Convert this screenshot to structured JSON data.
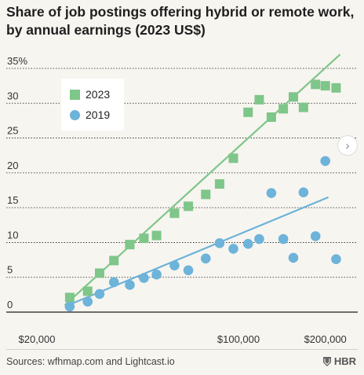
{
  "chart_data": {
    "type": "scatter",
    "title_lines": [
      "Share of job postings offering hybrid or remote work,",
      "by annual earnings (2023 US$)"
    ],
    "x_scale": "log",
    "xlim": [
      20000,
      230000
    ],
    "ylim": [
      0,
      35
    ],
    "x_ticks": [
      {
        "value": 20000,
        "label": "$20,000"
      },
      {
        "value": 100000,
        "label": "$100,000"
      },
      {
        "value": 200000,
        "label": "$200,000"
      }
    ],
    "y_ticks": [
      {
        "value": 0,
        "label": "0"
      },
      {
        "value": 5,
        "label": "5"
      },
      {
        "value": 10,
        "label": "10"
      },
      {
        "value": 15,
        "label": "15"
      },
      {
        "value": 20,
        "label": "20"
      },
      {
        "value": 25,
        "label": "25"
      },
      {
        "value": 30,
        "label": "30"
      },
      {
        "value": 35,
        "label": "35%"
      }
    ],
    "grid": true,
    "legend_position": "top-left",
    "series": [
      {
        "name": "2023",
        "marker": "square",
        "color": "#7ec689",
        "points": [
          [
            26000,
            2.1
          ],
          [
            30000,
            3.0
          ],
          [
            33000,
            5.6
          ],
          [
            37000,
            7.4
          ],
          [
            42000,
            9.7
          ],
          [
            47000,
            10.6
          ],
          [
            52000,
            11.0
          ],
          [
            60000,
            14.2
          ],
          [
            67000,
            15.2
          ],
          [
            77000,
            16.9
          ],
          [
            86000,
            18.4
          ],
          [
            96000,
            22.1
          ],
          [
            108000,
            28.7
          ],
          [
            118000,
            30.5
          ],
          [
            130000,
            28.0
          ],
          [
            143000,
            29.2
          ],
          [
            155000,
            30.9
          ],
          [
            168000,
            29.4
          ],
          [
            185000,
            32.7
          ],
          [
            200000,
            32.5
          ],
          [
            218000,
            32.2
          ]
        ],
        "trend": [
          [
            25000,
            1.0
          ],
          [
            225000,
            37.0
          ]
        ]
      },
      {
        "name": "2019",
        "marker": "circle",
        "color": "#6db3da",
        "points": [
          [
            26000,
            0.8
          ],
          [
            30000,
            1.5
          ],
          [
            33000,
            2.6
          ],
          [
            37000,
            4.3
          ],
          [
            42000,
            3.9
          ],
          [
            47000,
            4.9
          ],
          [
            52000,
            5.4
          ],
          [
            60000,
            6.7
          ],
          [
            67000,
            6.0
          ],
          [
            77000,
            7.7
          ],
          [
            86000,
            9.9
          ],
          [
            96000,
            9.1
          ],
          [
            108000,
            9.8
          ],
          [
            118000,
            10.5
          ],
          [
            130000,
            17.1
          ],
          [
            143000,
            10.5
          ],
          [
            155000,
            7.8
          ],
          [
            168000,
            17.2
          ],
          [
            185000,
            10.9
          ],
          [
            200000,
            21.7
          ],
          [
            218000,
            7.6
          ]
        ],
        "trend": [
          [
            25000,
            0.8
          ],
          [
            205000,
            16.5
          ]
        ]
      }
    ]
  },
  "footer": {
    "source": "Sources: wfhmap.com and Lightcast.io",
    "brand": "HBR",
    "next_glyph": "›"
  }
}
